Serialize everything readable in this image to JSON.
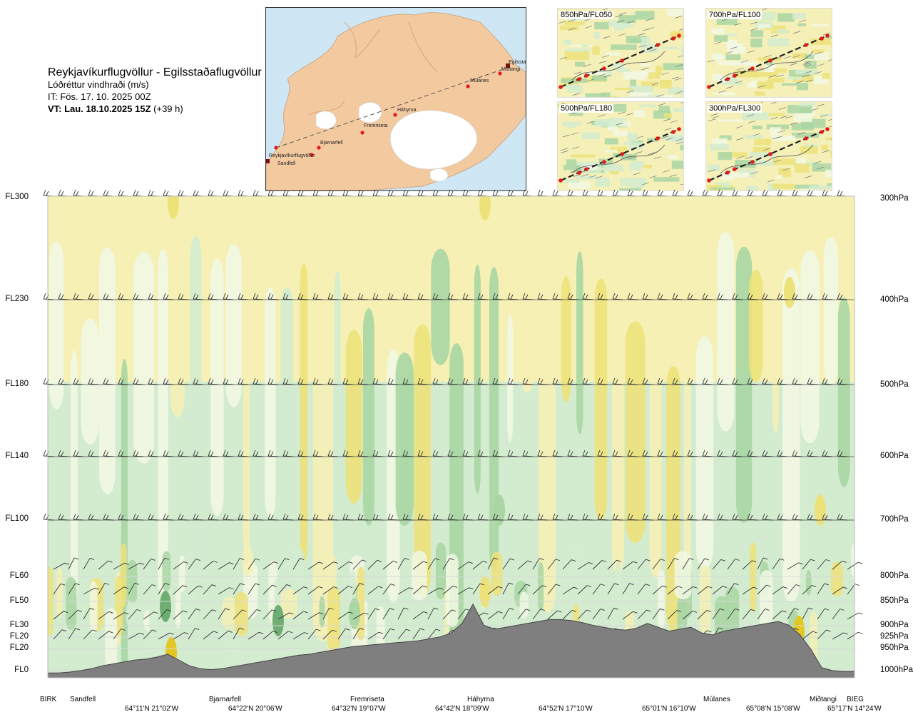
{
  "title": {
    "route": "Reykjavíkurflugvöllur - Egilsstaðaflugvöllur",
    "parameter": "Lóðréttur vindhraði (m/s)",
    "initial_time": "IT: Fös. 17. 10. 2025 00Z",
    "valid_time_bold": "VT: Lau. 18.10.2025 15Z",
    "valid_time_offset": " (+39 h)"
  },
  "map": {
    "waypoints": [
      "Reykjavíkurflugvöllur",
      "Sandfell",
      "Bjarnarfell",
      "Fremriseta",
      "Háhyrna",
      "Múlanes",
      "Miðtangi",
      "Egilsstaðir"
    ],
    "colors": {
      "sea": "#cfe6f5",
      "land": "#f3c9a0",
      "glacier": "#ffffff",
      "route": "#555555",
      "point": "#e31a1c"
    }
  },
  "minimaps": [
    {
      "label": "850hPa/FL050"
    },
    {
      "label": "700hPa/FL100"
    },
    {
      "label": "500hPa/FL180"
    },
    {
      "label": "300hPa/FL300"
    }
  ],
  "levels_left": [
    "FL300",
    "FL230",
    "FL180",
    "FL140",
    "FL100",
    "FL60",
    "FL50",
    "FL30",
    "FL20",
    "FL20",
    "FL0"
  ],
  "levels_right": [
    "300hPa",
    "400hPa",
    "500hPa",
    "600hPa",
    "700hPa",
    "800hPa",
    "850hPa",
    "900hPa",
    "925hPa",
    "950hPa",
    "1000hPa"
  ],
  "bottom_labels": [
    "BIRK",
    "Sandfell",
    "Bjarnarfell",
    "Fremriseta",
    "Háhyrna",
    "Múlanes",
    "Miðtangi",
    "BIEG"
  ],
  "coord_labels": [
    "64°11'N 21°02'W",
    "64°22'N 20°06'W",
    "64°32'N 19°07'W",
    "64°42'N 18°09'W",
    "64°52'N 17°10'W",
    "65°01'N 16°10'W",
    "65°08'N 15°08'W",
    "65°17'N 14°24'W"
  ],
  "chart_data": {
    "type": "heatmap",
    "title": "Reykjavíkurflugvöllur - Egilsstaðaflugvöllur",
    "variable": "Lóðréttur vindhraði (m/s)",
    "y_levels_hpa": [
      300,
      400,
      500,
      600,
      700,
      800,
      850,
      900,
      925,
      950,
      1000
    ],
    "y_levels_fl": [
      "FL300",
      "FL230",
      "FL180",
      "FL140",
      "FL100",
      "FL60",
      "FL50",
      "FL30",
      "FL20",
      "FL20",
      "FL0"
    ],
    "x_waypoints": [
      "BIRK",
      "Sandfell",
      "Bjarnarfell",
      "Fremriseta",
      "Háhyrna",
      "Múlanes",
      "Miðtangi",
      "BIEG"
    ],
    "colors": {
      "strong_up": "#6fae72",
      "up": "#a9d6a3",
      "weak_up": "#d3ecd0",
      "neutral": "#f2f8e4",
      "weak_down": "#f6f0b5",
      "down": "#ede27a",
      "strong_down": "#e3c825",
      "terrain": "#7f7f7f"
    },
    "terrain_profile": [
      0.5,
      0.5,
      1.5,
      3,
      5,
      8,
      10,
      12,
      14,
      15,
      17,
      20,
      14,
      8,
      5,
      4,
      5,
      7,
      9,
      11,
      13,
      15,
      17,
      19,
      20,
      22,
      24,
      26,
      28,
      29,
      30,
      31,
      32,
      33,
      34,
      36,
      38,
      42,
      52,
      72,
      50,
      46,
      48,
      50,
      52,
      54,
      56,
      56,
      55,
      53,
      50,
      48,
      46,
      45,
      47,
      52,
      48,
      44,
      46,
      48,
      42,
      40,
      44,
      46,
      48,
      50,
      52,
      54,
      50,
      40,
      25,
      6,
      3,
      2,
      2
    ]
  }
}
